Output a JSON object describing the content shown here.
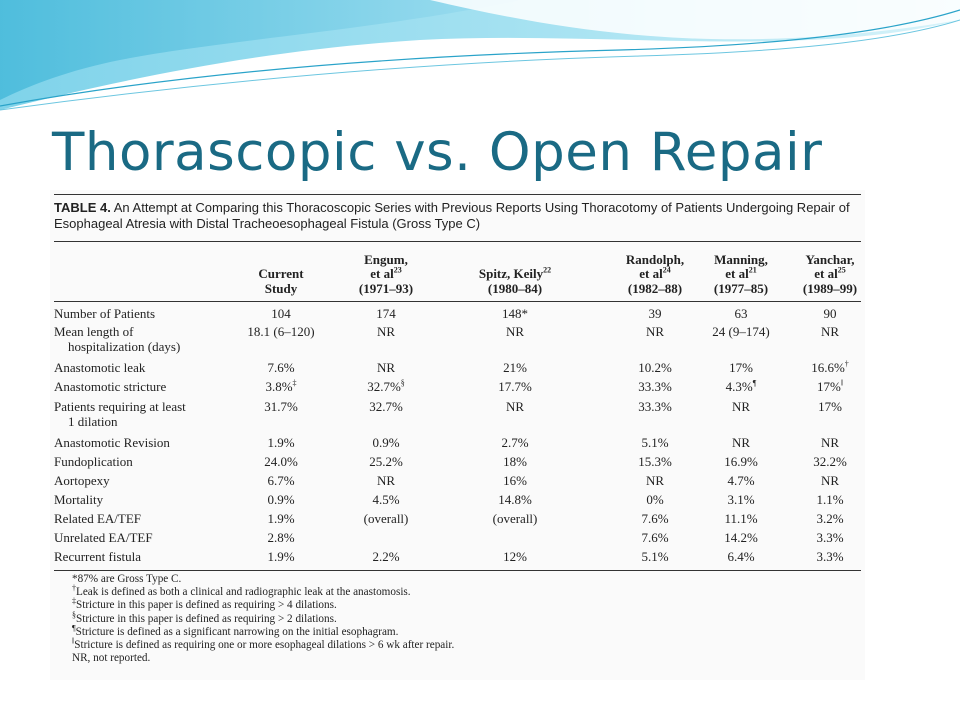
{
  "slide": {
    "title": "Thorascopic vs. Open Repair"
  },
  "table": {
    "label": "TABLE 4.",
    "caption": "An Attempt at Comparing this Thoracoscopic Series with Previous Reports Using Thoracotomy of Patients Undergoing Repair of Esophageal Atresia with Distal Tracheoesophageal Fistula (Gross Type C)",
    "headers": [
      {
        "l1": "Current",
        "l2": "Study",
        "l3": ""
      },
      {
        "l1": "Engum,",
        "l2": "et al",
        "sup": "23",
        "l3": "(1971–93)"
      },
      {
        "l1": "Spitz, Keily",
        "sup1": "22",
        "l2": "(1980–84)",
        "l3": ""
      },
      {
        "l1": "Randolph,",
        "l2": "et al",
        "sup": "24",
        "l3": "(1982–88)"
      },
      {
        "l1": "Manning,",
        "l2": "et al",
        "sup": "21",
        "l3": "(1977–85)"
      },
      {
        "l1": "Yanchar,",
        "l2": "et al",
        "sup": "25",
        "l3": "(1989–99)"
      }
    ],
    "rows": [
      {
        "label": "Number of Patients",
        "label2": "",
        "cells": [
          "104",
          "174",
          "148*",
          "39",
          "63",
          "90"
        ]
      },
      {
        "label": "Mean length of",
        "label2": "hospitalization (days)",
        "cells": [
          "18.1 (6–120)",
          "NR",
          "NR",
          "NR",
          "24 (9–174)",
          "NR"
        ]
      },
      {
        "label": "Anastomotic leak",
        "label2": "",
        "cells": [
          "7.6%",
          "NR",
          "21%",
          "10.2%",
          "17%",
          "16.6%†"
        ]
      },
      {
        "label": "Anastomotic stricture",
        "label2": "",
        "cells": [
          "3.8%‡",
          "32.7%§",
          "17.7%",
          "33.3%",
          "4.3%¶",
          "17%‖"
        ]
      },
      {
        "label": "Patients requiring at least",
        "label2": "1 dilation",
        "cells": [
          "31.7%",
          "32.7%",
          "NR",
          "33.3%",
          "NR",
          "17%"
        ]
      },
      {
        "label": "Anastomotic Revision",
        "label2": "",
        "cells": [
          "1.9%",
          "0.9%",
          "2.7%",
          "5.1%",
          "NR",
          "NR"
        ]
      },
      {
        "label": "Fundoplication",
        "label2": "",
        "cells": [
          "24.0%",
          "25.2%",
          "18%",
          "15.3%",
          "16.9%",
          "32.2%"
        ]
      },
      {
        "label": "Aortopexy",
        "label2": "",
        "cells": [
          "6.7%",
          "NR",
          "16%",
          "NR",
          "4.7%",
          "NR"
        ]
      },
      {
        "label": "Mortality",
        "label2": "",
        "cells": [
          "0.9%",
          "4.5%",
          "14.8%",
          "0%",
          "3.1%",
          "1.1%"
        ]
      },
      {
        "label": "Related EA/TEF",
        "label2": "",
        "cells": [
          "1.9%",
          "(overall)",
          "(overall)",
          "7.6%",
          "11.1%",
          "3.2%"
        ]
      },
      {
        "label": "Unrelated EA/TEF",
        "label2": "",
        "cells": [
          "2.8%",
          "",
          "",
          "7.6%",
          "14.2%",
          "3.3%"
        ]
      },
      {
        "label": "Recurrent fistula",
        "label2": "",
        "cells": [
          "1.9%",
          "2.2%",
          "12%",
          "5.1%",
          "6.4%",
          "3.3%"
        ]
      }
    ],
    "footnotes": [
      "*87% are Gross Type C.",
      "†Leak is defined as both a clinical and radiographic leak at the anastomosis.",
      "‡Stricture in this paper is defined as requiring > 4 dilations.",
      "§Stricture in this paper is defined as requiring > 2 dilations.",
      "¶Stricture is defined as a significant narrowing on the initial esophagram.",
      "‖Stricture is defined as requiring one or more esophageal dilations > 6 wk after repair.",
      "NR, not reported."
    ]
  }
}
